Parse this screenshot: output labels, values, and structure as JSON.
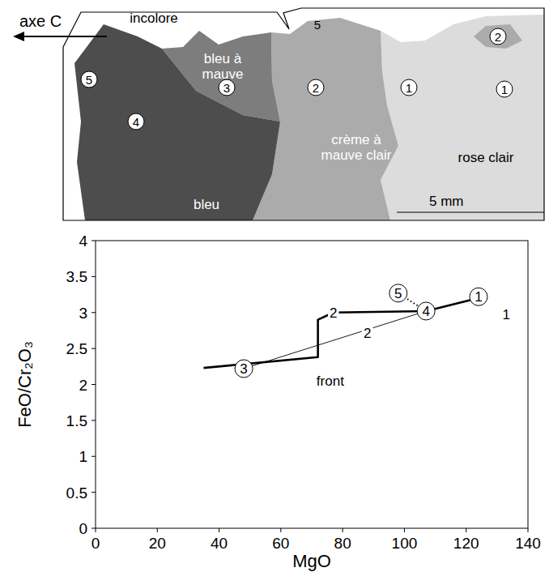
{
  "diagram": {
    "axis_label": "axe C",
    "zones": [
      {
        "label": "incolore"
      },
      {
        "label": "bleu à mauve"
      },
      {
        "label": "bleu"
      },
      {
        "label": "crème à mauve clair"
      },
      {
        "label": "rose clair"
      }
    ],
    "points": [
      {
        "label": "5",
        "marker": "circle"
      },
      {
        "label": "4",
        "marker": "circle"
      },
      {
        "label": "3",
        "marker": "circle"
      },
      {
        "label": "2",
        "marker": "circle"
      },
      {
        "label": "5",
        "marker": "none"
      },
      {
        "label": "2",
        "marker": "circle"
      },
      {
        "label": "1",
        "marker": "circle"
      },
      {
        "label": "1",
        "marker": "circle"
      }
    ],
    "scale_bar": "5 mm"
  },
  "chart_data": {
    "type": "line",
    "x_label": "MgO",
    "y_label": "FeO/Cr₂O₃",
    "xlim": [
      0,
      140
    ],
    "ylim": [
      0,
      4
    ],
    "xticks": [
      0,
      20,
      40,
      60,
      80,
      100,
      120,
      140
    ],
    "yticks": [
      0,
      0.5,
      1,
      1.5,
      2,
      2.5,
      3,
      3.5,
      4
    ],
    "series": [
      {
        "line_style": "thick",
        "color": "#000000",
        "x": [
          35,
          72,
          72,
          77,
          107,
          122
        ],
        "values": [
          2.23,
          2.38,
          2.9,
          3.0,
          3.02,
          3.18
        ]
      },
      {
        "line_style": "thin",
        "color": "#000000",
        "x": [
          48,
          107
        ],
        "values": [
          2.22,
          3.02
        ]
      },
      {
        "line_style": "dotted",
        "color": "#000000",
        "x": [
          98,
          107
        ],
        "values": [
          3.27,
          3.02
        ]
      }
    ],
    "annotations": [
      {
        "text": "3",
        "x": 48,
        "y": 2.22,
        "marker": "circle"
      },
      {
        "text": "2",
        "x": 77,
        "y": 3.0,
        "marker": "none"
      },
      {
        "text": "2",
        "x": 88,
        "y": 2.72,
        "marker": "none"
      },
      {
        "text": "4",
        "x": 107,
        "y": 3.02,
        "marker": "circle"
      },
      {
        "text": "5",
        "x": 98,
        "y": 3.27,
        "marker": "circle"
      },
      {
        "text": "1",
        "x": 124,
        "y": 3.22,
        "marker": "circle"
      },
      {
        "text": "1",
        "x": 133,
        "y": 2.97,
        "marker": "none"
      },
      {
        "text": "front",
        "x": 76,
        "y": 2.05,
        "marker": "none"
      }
    ]
  }
}
